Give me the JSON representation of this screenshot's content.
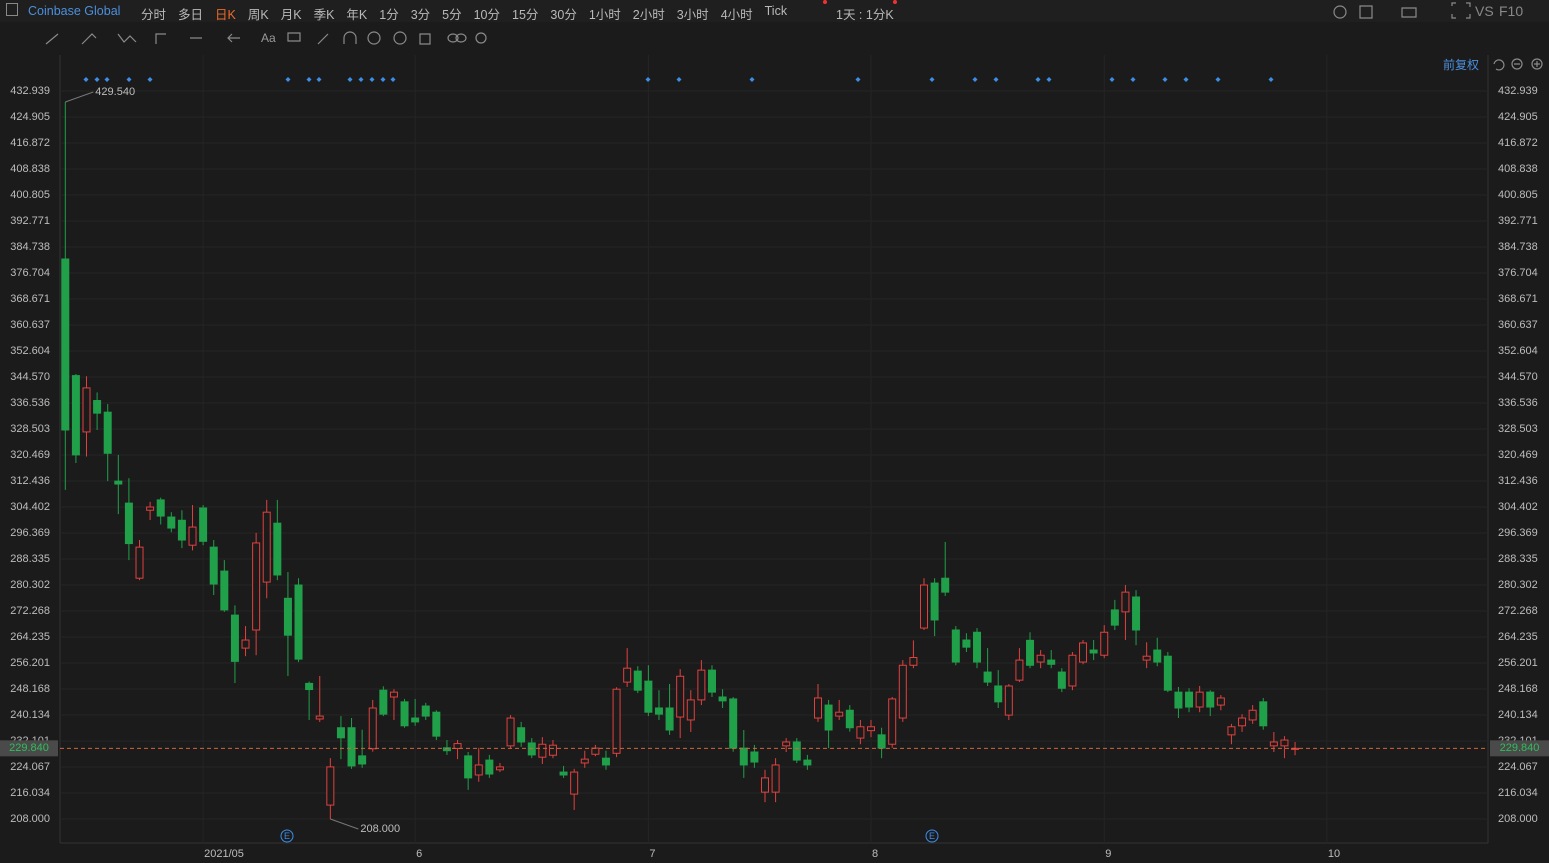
{
  "toolbar": {
    "symbol": "Coinbase Global",
    "periods": [
      "分时",
      "多日",
      "日K",
      "周K",
      "月K",
      "季K",
      "年K",
      "1分",
      "3分",
      "5分",
      "10分",
      "15分",
      "30分",
      "1小时",
      "2小时",
      "3小时",
      "4小时",
      "Tick"
    ],
    "combo": "1天 : 1分K",
    "vs": "VS",
    "f10": "F10",
    "font_tool": "Aa",
    "adjust": "前复权"
  },
  "chart_data": {
    "type": "candlestick",
    "up_color": "#e0413f",
    "down_color": "#21a04a",
    "grid": true,
    "open": [
      381.03,
      345.0,
      327.6,
      337.3,
      333.7,
      312.4,
      305.6,
      282.4,
      303.4,
      306.6,
      301.3,
      300.3,
      292.6,
      304.1,
      292.0,
      284.6,
      271.0,
      260.8,
      266.4,
      281.2,
      299.4,
      276.2,
      280.3,
      249.9,
      238.9,
      212.3,
      236.2,
      236.2,
      227.5,
      229.7,
      247.8,
      245.7,
      244.2,
      239.2,
      242.9,
      241.0,
      230.0,
      229.8,
      227.5,
      221.6,
      226.2,
      223.2,
      230.6,
      236.2,
      231.5,
      227.1,
      227.7,
      222.5,
      215.7,
      225.3,
      228.0,
      226.8,
      228.3,
      250.3,
      253.7,
      250.6,
      242.3,
      242.3,
      239.5,
      238.6,
      244.8,
      254.0,
      245.7,
      245.1,
      229.9,
      228.7,
      216.3,
      216.3,
      230.6,
      231.8,
      226.2,
      239.2,
      243.2,
      239.8,
      241.6,
      233.0,
      235.3,
      234.0,
      231.1,
      239.2,
      255.5,
      267.0,
      280.9,
      282.4,
      266.4,
      263.3,
      265.7,
      253.4,
      249.1,
      240.1,
      250.9,
      263.2,
      256.5,
      257.1,
      253.4,
      249.1,
      256.5,
      260.2,
      258.6,
      272.6,
      272.0,
      276.6,
      257.1,
      260.2,
      258.3,
      247.2,
      247.2,
      242.6,
      247.2,
      243.2,
      234.0,
      236.8,
      238.6,
      244.2,
      230.6,
      230.6,
      229.5
    ],
    "high": [
      429.54,
      345.5,
      344.8,
      339.8,
      336.2,
      320.5,
      313.3,
      294.2,
      306.0,
      307.3,
      302.8,
      303.4,
      305.0,
      305.0,
      294.2,
      288.0,
      274.0,
      267.6,
      296.4,
      306.6,
      306.6,
      284.3,
      282.4,
      250.5,
      252.2,
      226.8,
      239.8,
      239.2,
      235.6,
      244.8,
      249.0,
      248.1,
      245.1,
      245.1,
      243.9,
      241.6,
      232.4,
      232.4,
      228.7,
      230.0,
      227.8,
      225.3,
      240.1,
      238.0,
      233.0,
      233.3,
      232.4,
      224.4,
      223.5,
      229.1,
      230.9,
      229.1,
      248.7,
      260.8,
      255.2,
      255.5,
      247.8,
      249.7,
      254.3,
      247.8,
      257.1,
      255.5,
      248.1,
      245.7,
      235.5,
      230.9,
      223.2,
      226.8,
      233.0,
      233.0,
      227.8,
      249.7,
      244.8,
      244.8,
      243.2,
      238.6,
      238.6,
      236.2,
      245.7,
      257.1,
      263.2,
      282.4,
      282.4,
      293.6,
      267.6,
      265.4,
      267.0,
      260.8,
      254.0,
      249.7,
      260.8,
      265.7,
      260.2,
      260.2,
      254.6,
      259.6,
      263.3,
      263.3,
      267.9,
      275.7,
      280.3,
      278.7,
      262.6,
      264.0,
      259.6,
      248.8,
      248.4,
      249.1,
      247.8,
      246.3,
      237.4,
      240.4,
      243.2,
      245.4,
      234.9,
      233.6,
      231.8
    ],
    "low": [
      309.7,
      318.0,
      320.0,
      328.2,
      312.4,
      302.2,
      288.0,
      281.8,
      300.4,
      299.0,
      296.6,
      291.7,
      291.0,
      292.6,
      277.2,
      272.0,
      250.0,
      258.3,
      258.6,
      276.2,
      281.8,
      252.2,
      256.5,
      238.6,
      238.0,
      208.0,
      226.5,
      223.5,
      223.8,
      228.8,
      239.8,
      238.6,
      236.2,
      236.8,
      238.6,
      232.4,
      227.8,
      226.5,
      217.0,
      219.5,
      220.7,
      222.5,
      229.9,
      230.3,
      226.8,
      225.0,
      226.8,
      220.7,
      210.8,
      223.8,
      227.4,
      223.2,
      227.1,
      248.8,
      246.9,
      239.8,
      238.6,
      234.0,
      233.0,
      234.9,
      243.2,
      245.7,
      242.3,
      228.8,
      220.7,
      223.8,
      213.2,
      213.2,
      228.7,
      225.3,
      223.2,
      238.0,
      229.9,
      238.6,
      235.0,
      231.1,
      233.3,
      226.8,
      230.0,
      238.0,
      254.6,
      266.4,
      264.5,
      276.9,
      255.5,
      259.6,
      254.6,
      249.1,
      242.3,
      238.6,
      250.3,
      254.6,
      254.6,
      254.6,
      247.2,
      247.8,
      255.8,
      257.1,
      257.7,
      266.4,
      263.3,
      261.7,
      254.6,
      255.2,
      247.2,
      239.2,
      241.0,
      241.0,
      239.8,
      241.6,
      231.1,
      234.9,
      237.4,
      235.6,
      228.7,
      226.8,
      227.7
    ],
    "close": [
      328.2,
      320.5,
      341.2,
      333.4,
      321.0,
      311.5,
      293.1,
      292.0,
      304.4,
      301.6,
      297.9,
      294.2,
      298.2,
      293.8,
      280.6,
      272.6,
      256.7,
      263.3,
      293.3,
      302.8,
      283.4,
      264.8,
      257.4,
      248.0,
      239.8,
      224.1,
      233.1,
      224.4,
      225.0,
      242.3,
      240.4,
      247.2,
      236.8,
      238.0,
      239.8,
      233.6,
      229.1,
      231.3,
      220.7,
      224.7,
      221.9,
      224.1,
      239.2,
      231.8,
      227.8,
      231.1,
      230.8,
      221.6,
      222.5,
      226.5,
      229.9,
      224.7,
      248.1,
      254.6,
      247.8,
      241.0,
      240.4,
      235.5,
      252.1,
      244.8,
      254.0,
      247.2,
      244.5,
      229.9,
      224.7,
      225.6,
      220.7,
      224.7,
      231.8,
      226.2,
      224.7,
      245.4,
      235.5,
      241.0,
      236.2,
      236.5,
      236.5,
      229.9,
      245.1,
      255.5,
      257.9,
      280.3,
      269.5,
      278.1,
      256.5,
      261.1,
      256.5,
      250.3,
      244.2,
      249.1,
      257.1,
      255.5,
      258.6,
      255.8,
      248.4,
      258.6,
      262.4,
      259.3,
      265.7,
      267.9,
      278.1,
      266.4,
      258.3,
      256.5,
      247.8,
      242.3,
      242.6,
      247.2,
      242.6,
      245.4,
      236.5,
      239.2,
      241.6,
      236.8,
      231.8,
      232.4,
      229.84
    ],
    "ylim": [
      200.584,
      437.883
    ],
    "yticks": [
      432.939,
      424.905,
      416.872,
      408.838,
      400.805,
      392.771,
      384.738,
      376.704,
      368.671,
      360.637,
      352.604,
      {
        "value": 344.57,
        "label": "344.570"
      },
      336.536,
      328.503,
      320.469,
      312.436,
      304.402,
      296.369,
      288.335,
      280.302,
      272.268,
      264.235,
      256.201,
      248.168,
      240.134,
      232.101,
      224.067,
      216.034,
      {
        "value": 208,
        "label": "208.000"
      }
    ],
    "xlim": [
      -0.5,
      134.2
    ],
    "xticks": [
      {
        "value": 13,
        "label": "2021/05"
      },
      {
        "value": 33,
        "label": "6"
      },
      {
        "value": 55,
        "label": "7"
      },
      {
        "value": 76,
        "label": "8"
      },
      {
        "value": 98,
        "label": "9"
      },
      {
        "value": 119,
        "label": "10"
      }
    ],
    "annotations": [
      {
        "index": 0,
        "value": 429.54,
        "label": "429.540"
      },
      {
        "index": 25,
        "value": 208,
        "label": "208.000"
      }
    ],
    "current_price": {
      "value": 229.84,
      "label": "229.840"
    },
    "event_marks": [
      "E",
      "E"
    ]
  }
}
